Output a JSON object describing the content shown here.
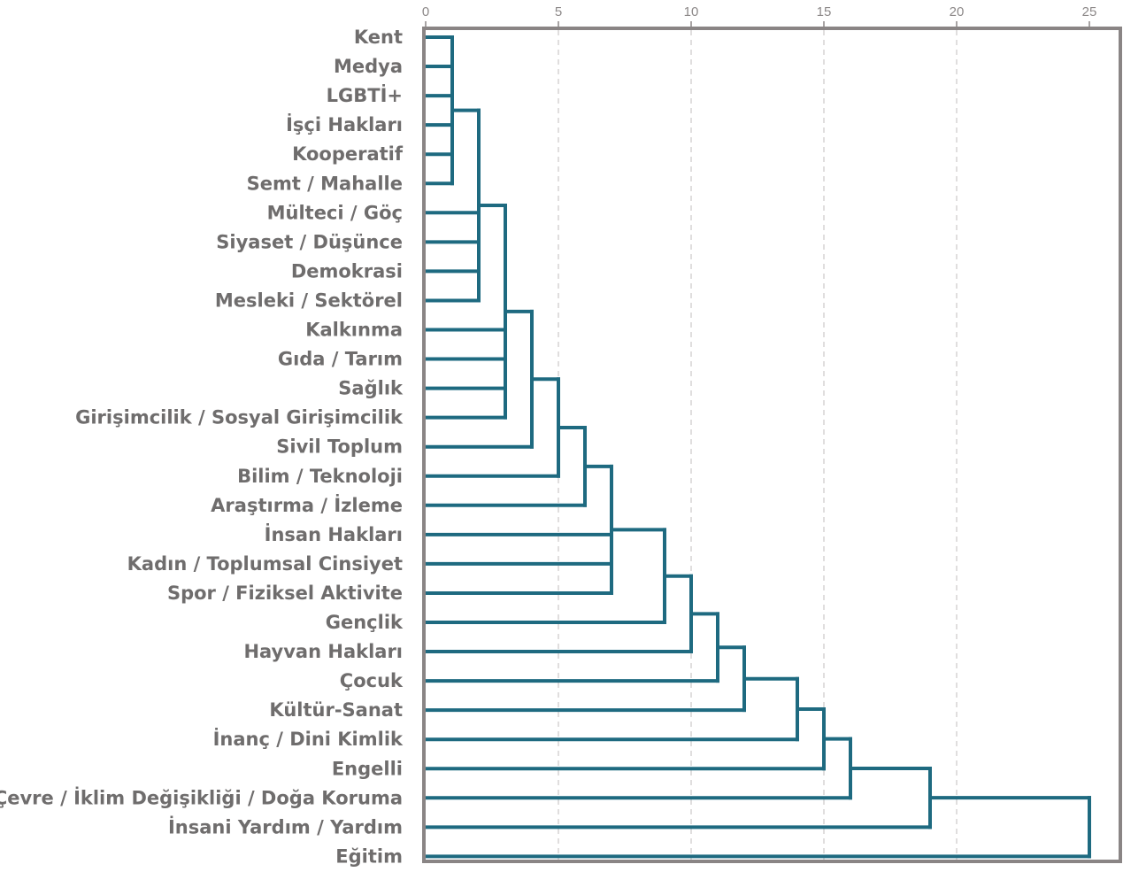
{
  "chart_data": {
    "type": "dendrogram",
    "orientation": "horizontal",
    "xlim": [
      0,
      25
    ],
    "xticks": [
      0,
      5,
      10,
      15,
      20,
      25
    ],
    "grid": true,
    "leaves": [
      "Kent",
      "Medya",
      "LGBTİ+",
      "İşçi Hakları",
      "Kooperatif",
      "Semt / Mahalle",
      "Mülteci / Göç",
      "Siyaset / Düşünce",
      "Demokrasi",
      "Mesleki / Sektörel",
      "Kalkınma",
      "Gıda / Tarım",
      "Sağlık",
      "Girişimcilik / Sosyal Girişimcilik",
      "Sivil Toplum",
      "Bilim / Teknoloji",
      "Araştırma / İzleme",
      "İnsan Hakları",
      "Kadın / Toplumsal Cinsiyet",
      "Spor / Fiziksel Aktivite",
      "Gençlik",
      "Hayvan Hakları",
      "Çocuk",
      "Kültür-Sanat",
      "İnanç / Dini Kimlik",
      "Engelli",
      "Çevre / İklim Değişikliği / Doğa Koruma",
      "İnsani Yardım / Yardım",
      "Eğitim"
    ],
    "merges": [
      {
        "items": [
          0,
          1,
          2,
          3,
          4,
          5
        ],
        "height": 1
      },
      {
        "items": [
          "m0",
          6,
          7,
          8,
          9
        ],
        "height": 2
      },
      {
        "items": [
          "m1",
          10,
          11,
          12,
          13
        ],
        "height": 3
      },
      {
        "items": [
          "m2",
          14
        ],
        "height": 4
      },
      {
        "items": [
          "m3",
          15
        ],
        "height": 5
      },
      {
        "items": [
          "m4",
          16
        ],
        "height": 6
      },
      {
        "items": [
          "m5",
          17,
          18,
          19
        ],
        "height": 7
      },
      {
        "items": [
          "m6",
          20
        ],
        "height": 9
      },
      {
        "items": [
          "m7",
          21
        ],
        "height": 10
      },
      {
        "items": [
          "m8",
          22
        ],
        "height": 11
      },
      {
        "items": [
          "m9",
          23
        ],
        "height": 12
      },
      {
        "items": [
          "m10",
          24
        ],
        "height": 14
      },
      {
        "items": [
          "m11",
          25
        ],
        "height": 15
      },
      {
        "items": [
          "m12",
          26
        ],
        "height": 16
      },
      {
        "items": [
          "m13",
          27
        ],
        "height": 19
      },
      {
        "items": [
          "m14",
          28
        ],
        "height": 25
      }
    ],
    "colors": {
      "link": "#1e6a80",
      "frame": "#8a8585",
      "grid": "#d6d3d3",
      "label": "#6f6d6d",
      "tick_label": "#8c8888"
    }
  }
}
